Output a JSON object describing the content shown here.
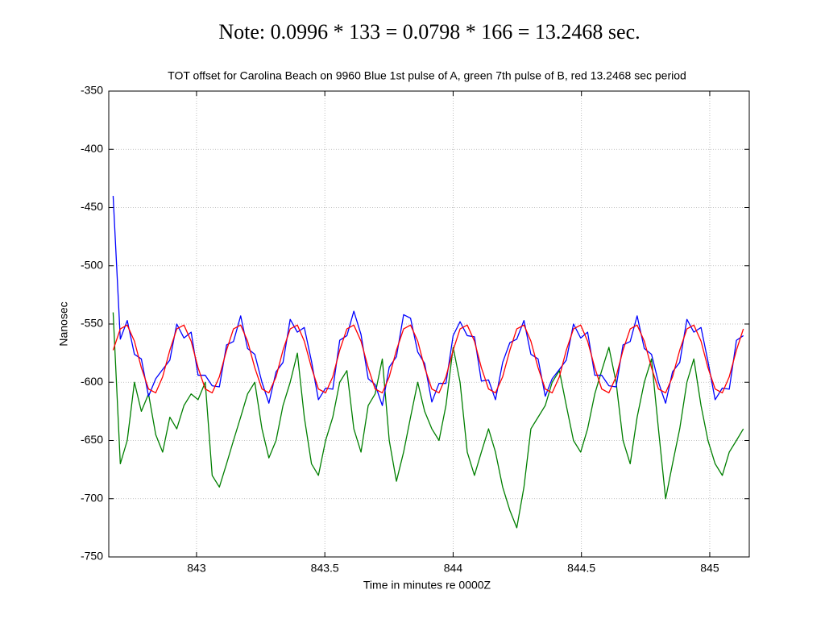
{
  "chart_data": {
    "type": "line",
    "note": "Note:  0.0996 * 133 = 0.0798 * 166 = 13.2468 sec.",
    "title": "TOT offset for Carolina Beach on 9960 Blue 1st pulse of A, green 7th pulse of B, red 13.2468 sec period",
    "x_label": "Time in minutes re 0000Z",
    "y_label": "Nanosec",
    "xlim": [
      842.658,
      845.154
    ],
    "ylim": [
      -750,
      -350
    ],
    "xticks": [
      843,
      843.5,
      844,
      844.5,
      845
    ],
    "yticks": [
      -350,
      -400,
      -450,
      -500,
      -550,
      -600,
      -650,
      -700,
      -750
    ],
    "grid": true,
    "x": [
      842.675,
      842.703,
      842.73,
      842.758,
      842.785,
      842.813,
      842.841,
      842.868,
      842.896,
      842.923,
      842.951,
      842.979,
      843.006,
      843.034,
      843.061,
      843.089,
      843.117,
      843.144,
      843.172,
      843.199,
      843.227,
      843.255,
      843.282,
      843.31,
      843.337,
      843.365,
      843.393,
      843.42,
      843.448,
      843.475,
      843.503,
      843.531,
      843.558,
      843.586,
      843.613,
      843.641,
      843.669,
      843.696,
      843.724,
      843.751,
      843.779,
      843.807,
      843.834,
      843.862,
      843.889,
      843.917,
      843.945,
      843.972,
      844.0,
      844.027,
      844.055,
      844.083,
      844.11,
      844.138,
      844.165,
      844.193,
      844.221,
      844.248,
      844.276,
      844.303,
      844.331,
      844.359,
      844.386,
      844.414,
      844.441,
      844.469,
      844.497,
      844.524,
      844.552,
      844.579,
      844.607,
      844.635,
      844.662,
      844.69,
      844.717,
      844.745,
      844.773,
      844.8,
      844.828,
      844.855,
      844.883,
      844.911,
      844.938,
      844.966,
      844.993,
      845.021,
      845.049,
      845.076,
      845.104,
      845.131
    ],
    "series": [
      {
        "color": "#007f00",
        "values": [
          -540,
          -670,
          -650,
          -600,
          -625,
          -610,
          -645,
          -660,
          -630,
          -640,
          -620,
          -610,
          -615,
          -600,
          -680,
          -690,
          -670,
          -650,
          -630,
          -610,
          -600,
          -640,
          -665,
          -650,
          -620,
          -600,
          -575,
          -630,
          -670,
          -680,
          -650,
          -630,
          -600,
          -590,
          -640,
          -660,
          -620,
          -610,
          -580,
          -650,
          -685,
          -660,
          -630,
          -600,
          -625,
          -640,
          -650,
          -620,
          -570,
          -600,
          -660,
          -680,
          -660,
          -640,
          -660,
          -690,
          -710,
          -725,
          -690,
          -640,
          -630,
          -620,
          -600,
          -590,
          -620,
          -650,
          -660,
          -640,
          -610,
          -590,
          -570,
          -600,
          -650,
          -670,
          -630,
          -600,
          -580,
          -640,
          -700,
          -670,
          -640,
          -600,
          -580,
          -620,
          -650,
          -670,
          -680,
          -660,
          -650,
          -640
        ]
      },
      {
        "color": "#0000ff",
        "values": [
          -440,
          -563,
          -547,
          -576,
          -580,
          -612,
          -597,
          -589,
          -581,
          -550,
          -562,
          -557,
          -594,
          -594,
          -603,
          -604,
          -568,
          -565,
          -543,
          -571,
          -576,
          -600,
          -618,
          -591,
          -583,
          -546,
          -557,
          -553,
          -582,
          -615,
          -605,
          -606,
          -564,
          -560,
          -539,
          -559,
          -597,
          -602,
          -620,
          -587,
          -578,
          -542,
          -545,
          -574,
          -584,
          -617,
          -601,
          -601,
          -560,
          -548,
          -560,
          -561,
          -599,
          -598,
          -615,
          -583,
          -566,
          -563,
          -547,
          -576,
          -580,
          -612,
          -597,
          -589,
          -581,
          -550,
          -562,
          -557,
          -594,
          -594,
          -603,
          -604,
          -568,
          -565,
          -543,
          -571,
          -576,
          -600,
          -618,
          -591,
          -583,
          -546,
          -557,
          -553,
          -582,
          -615,
          -605,
          -606,
          -564,
          -560
        ]
      },
      {
        "color": "#ff0000",
        "values": [
          -572.5,
          -554.2,
          -550.9,
          -564.7,
          -587.5,
          -605.8,
          -609.1,
          -595.3,
          -572.5,
          -554.2,
          -550.9,
          -564.7,
          -587.5,
          -605.8,
          -609.1,
          -595.3,
          -572.5,
          -554.2,
          -550.9,
          -564.7,
          -587.5,
          -605.8,
          -609.1,
          -595.3,
          -572.5,
          -554.2,
          -550.9,
          -564.7,
          -587.5,
          -605.8,
          -609.1,
          -595.3,
          -572.5,
          -554.2,
          -550.9,
          -564.7,
          -587.5,
          -605.8,
          -609.1,
          -595.3,
          -572.5,
          -554.2,
          -550.9,
          -564.7,
          -587.5,
          -605.8,
          -609.1,
          -595.3,
          -572.5,
          -554.2,
          -550.9,
          -564.7,
          -587.5,
          -605.8,
          -609.1,
          -595.3,
          -572.5,
          -554.2,
          -550.9,
          -564.7,
          -587.5,
          -605.8,
          -609.1,
          -595.3,
          -572.5,
          -554.2,
          -550.9,
          -564.7,
          -587.5,
          -605.8,
          -609.1,
          -595.3,
          -572.5,
          -554.2,
          -550.9,
          -564.7,
          -587.5,
          -605.8,
          -609.1,
          -595.3,
          -572.5,
          -554.2,
          -550.9,
          -564.7,
          -587.5,
          -605.8,
          -609.1,
          -595.3,
          -572.5,
          -554.2
        ]
      }
    ]
  }
}
